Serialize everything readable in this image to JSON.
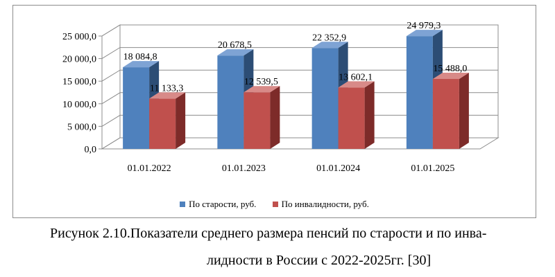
{
  "chart_data": {
    "type": "bar",
    "variant": "3d-clustered-column",
    "categories": [
      "01.01.2022",
      "01.01.2023",
      "01.01.2024",
      "01.01.2025"
    ],
    "series": [
      {
        "name": "По старости, руб.",
        "color": "#4f81bd",
        "side_color": "#2c4d75",
        "top_color": "#7ea3d4",
        "values": [
          18084.8,
          20678.5,
          22352.9,
          24979.3
        ],
        "labels": [
          "18 084,8",
          "20 678,5",
          "22 352,9",
          "24 979,3"
        ]
      },
      {
        "name": "По инвалидности, руб.",
        "color": "#c0504d",
        "side_color": "#7d2b29",
        "top_color": "#d88a88",
        "values": [
          11133.3,
          12539.5,
          13602.1,
          15488.0
        ],
        "labels": [
          "11 133,3",
          "12 539,5",
          "13 602,1",
          "15 488,0"
        ]
      }
    ],
    "yticks": [
      "0,0",
      "5 000,0",
      "10 000,0",
      "15 000,0",
      "20 000,0",
      "25 000,0"
    ],
    "ylim": [
      0,
      25000
    ],
    "legend_position": "bottom",
    "grid": true
  },
  "caption": {
    "line1": "Рисунок 2.10.Показатели среднего размера пенсий по старости и по инва-",
    "line2": "лидности в России с 2022-2025гг. [30]"
  }
}
